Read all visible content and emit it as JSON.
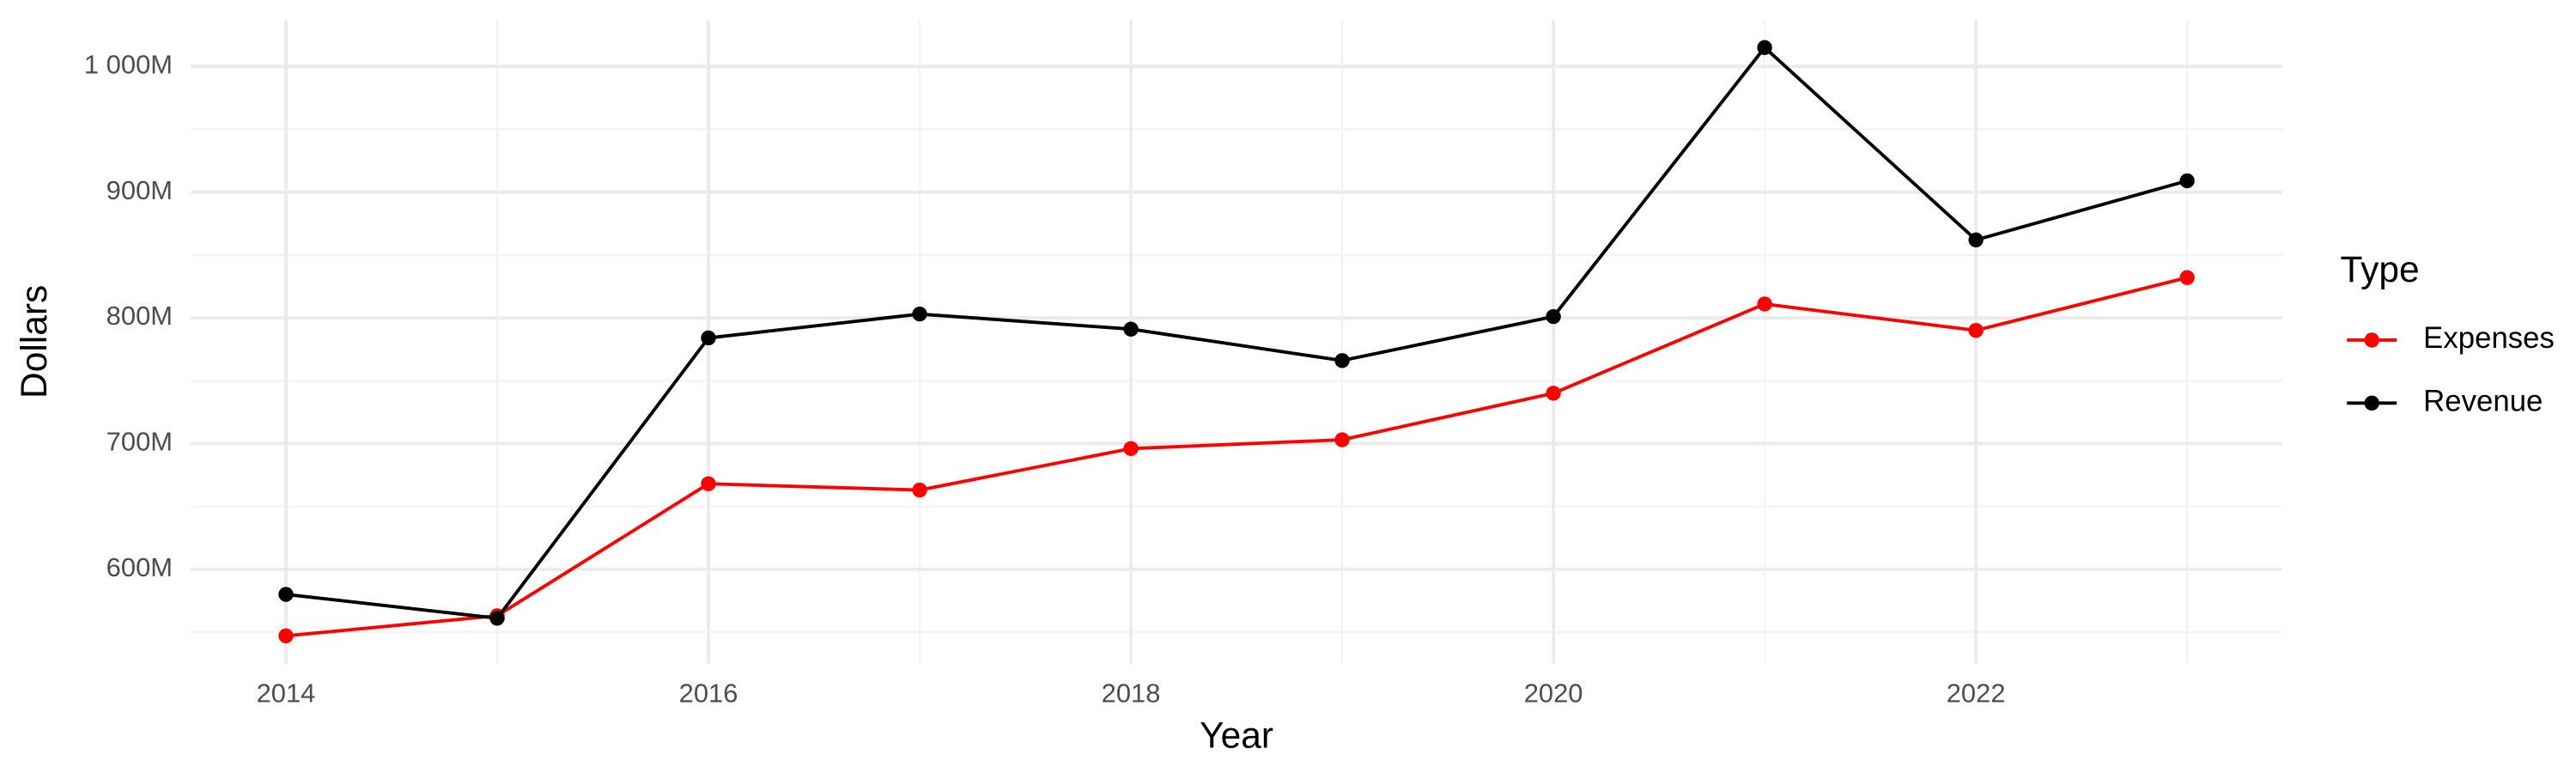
{
  "chart_data": {
    "type": "line",
    "x_label": "Year",
    "y_label": "Dollars",
    "legend_title": "Type",
    "legend_position": "right",
    "grid": true,
    "x": [
      2014,
      2015,
      2016,
      2017,
      2018,
      2019,
      2020,
      2021,
      2022,
      2023
    ],
    "series": [
      {
        "name": "Expenses",
        "color": "#ff0000",
        "values": [
          547000000,
          563000000,
          668000000,
          663000000,
          696000000,
          703000000,
          740000000,
          811000000,
          790000000,
          832000000
        ]
      },
      {
        "name": "Revenue",
        "color": "#000000",
        "values": [
          580000000,
          561000000,
          784000000,
          803000000,
          791000000,
          766000000,
          801000000,
          1015000000,
          862000000,
          909000000
        ]
      }
    ],
    "xlim": [
      2013.55,
      2023.45
    ],
    "xticks": [
      2014,
      2016,
      2018,
      2020,
      2022
    ],
    "ylim": [
      525000000,
      1037000000
    ],
    "yticks": [
      {
        "value": 600000000,
        "label": "600M"
      },
      {
        "value": 700000000,
        "label": "700M"
      },
      {
        "value": 800000000,
        "label": "800M"
      },
      {
        "value": 900000000,
        "label": "900M"
      },
      {
        "value": 1000000000,
        "label": "1 000M"
      }
    ]
  }
}
